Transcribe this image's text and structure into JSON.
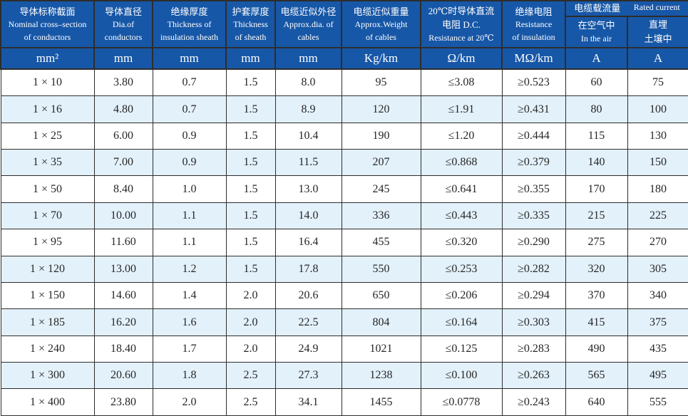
{
  "colors": {
    "header_bg": "#1757a7",
    "header_text": "#ffffff",
    "row_bg": "#ffffff",
    "row_alt_bg": "#e3f1fb",
    "grid_line": "#2d2d2d",
    "data_text": "#262626"
  },
  "table": {
    "columns": [
      {
        "title_zh": "导体标称截面",
        "title_en": "Nominal cross–section\nof conductors",
        "unit": "mm²"
      },
      {
        "title_zh": "导体直径",
        "title_en": "Dia.of\nconductors",
        "unit": "mm"
      },
      {
        "title_zh": "绝缘厚度",
        "title_en": "Thickness of\ninsulation sheath",
        "unit": "mm"
      },
      {
        "title_zh": "护套厚度",
        "title_en": "Thickness\nof sheath",
        "unit": "mm"
      },
      {
        "title_zh": "电缆近似外径",
        "title_en": "Approx.dia. of\ncables",
        "unit": "mm"
      },
      {
        "title_zh": "电缆近似重量",
        "title_en": "Approx.Weight\nof cables",
        "unit": "Kg/km"
      },
      {
        "title_zh": "20℃时导体直流\n电阻 D.C.",
        "title_en": "Resistance at 20℃",
        "unit": "Ω/km"
      },
      {
        "title_zh": "绝缘电阻",
        "title_en": "Resistance\nof insulation",
        "unit": "MΩ/km"
      }
    ],
    "rated_current_group": {
      "title_zh": "电缆载流量",
      "title_en": "Rated current",
      "subcolumns": [
        {
          "title_zh": "在空气中",
          "title_en": "In the air",
          "unit": "A"
        },
        {
          "title_zh": "直埋\n土壤中",
          "title_en": "",
          "unit": "A"
        }
      ]
    },
    "rows": [
      [
        "1 × 10",
        "3.80",
        "0.7",
        "1.5",
        "8.0",
        "95",
        "≤3.08",
        "≥0.523",
        "60",
        "75"
      ],
      [
        "1 × 16",
        "4.80",
        "0.7",
        "1.5",
        "8.9",
        "120",
        "≤1.91",
        "≥0.431",
        "80",
        "100"
      ],
      [
        "1 × 25",
        "6.00",
        "0.9",
        "1.5",
        "10.4",
        "190",
        "≤1.20",
        "≥0.444",
        "115",
        "130"
      ],
      [
        "1 × 35",
        "7.00",
        "0.9",
        "1.5",
        "11.5",
        "207",
        "≤0.868",
        "≥0.379",
        "140",
        "150"
      ],
      [
        "1 × 50",
        "8.40",
        "1.0",
        "1.5",
        "13.0",
        "245",
        "≤0.641",
        "≥0.355",
        "170",
        "180"
      ],
      [
        "1 × 70",
        "10.00",
        "1.1",
        "1.5",
        "14.0",
        "336",
        "≤0.443",
        "≥0.335",
        "215",
        "225"
      ],
      [
        "1 × 95",
        "11.60",
        "1.1",
        "1.5",
        "16.4",
        "455",
        "≤0.320",
        "≥0.290",
        "275",
        "270"
      ],
      [
        "1 × 120",
        "13.00",
        "1.2",
        "1.5",
        "17.8",
        "550",
        "≤0.253",
        "≥0.282",
        "320",
        "305"
      ],
      [
        "1 × 150",
        "14.60",
        "1.4",
        "2.0",
        "20.6",
        "650",
        "≤0.206",
        "≥0.294",
        "370",
        "340"
      ],
      [
        "1 × 185",
        "16.20",
        "1.6",
        "2.0",
        "22.5",
        "804",
        "≤0.164",
        "≥0.303",
        "415",
        "375"
      ],
      [
        "1 × 240",
        "18.40",
        "1.7",
        "2.0",
        "24.9",
        "1021",
        "≤0.125",
        "≥0.283",
        "490",
        "435"
      ],
      [
        "1 × 300",
        "20.60",
        "1.8",
        "2.5",
        "27.3",
        "1238",
        "≤0.100",
        "≥0.263",
        "565",
        "495"
      ],
      [
        "1 × 400",
        "23.80",
        "2.0",
        "2.5",
        "34.1",
        "1455",
        "≤0.0778",
        "≥0.243",
        "640",
        "555"
      ]
    ]
  }
}
